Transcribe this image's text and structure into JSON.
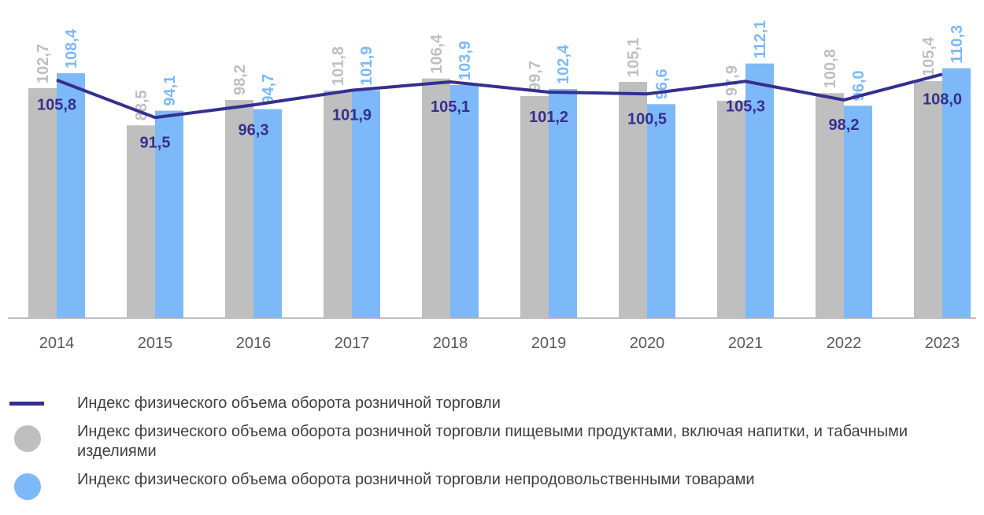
{
  "chart_data": {
    "type": "bar-line",
    "categories": [
      "2014",
      "2015",
      "2016",
      "2017",
      "2018",
      "2019",
      "2020",
      "2021",
      "2022",
      "2023"
    ],
    "ylim": [
      15,
      115
    ],
    "series": [
      {
        "name": "Индекс физического объема оборота розничной торговли",
        "type": "line",
        "color": "#352f8f",
        "values": [
          105.8,
          91.5,
          96.3,
          101.9,
          105.1,
          101.2,
          100.5,
          105.3,
          98.2,
          108.0
        ],
        "value_labels": [
          "105,8",
          "91,5",
          "96,3",
          "101,9",
          "105,1",
          "101,2",
          "100,5",
          "105,3",
          "98,2",
          "108,0"
        ]
      },
      {
        "name": "Индекс физического объема оборота розничной торговли пищевыми продуктами, включая напитки, и табачными изделиями",
        "type": "bar",
        "color": "#bfbfbf",
        "values": [
          102.7,
          88.5,
          98.2,
          101.8,
          106.4,
          99.7,
          105.1,
          97.9,
          100.8,
          105.4
        ],
        "value_labels": [
          "102,7",
          "88,5",
          "98,2",
          "101,8",
          "106,4",
          "99,7",
          "105,1",
          "97,9",
          "100,8",
          "105,4"
        ]
      },
      {
        "name": "Индекс физического объема оборота розничной торговли непродовольственными товарами",
        "type": "bar",
        "color": "#7db9f8",
        "values": [
          108.4,
          94.1,
          94.7,
          101.9,
          103.9,
          102.4,
          96.6,
          112.1,
          96.0,
          110.3
        ],
        "value_labels": [
          "108,4",
          "94,1",
          "94,7",
          "101,9",
          "103,9",
          "102,4",
          "96,6",
          "112,1",
          "96,0",
          "110,3"
        ]
      }
    ]
  }
}
